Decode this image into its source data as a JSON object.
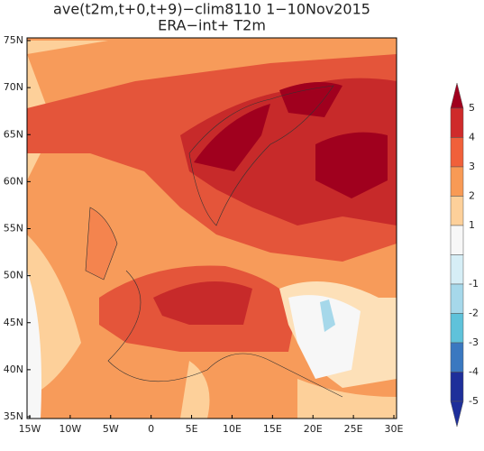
{
  "header": {
    "title": "ave(t2m,t+0,t+9)−clim8110  1−10Nov2015",
    "subtitle": "ERA−int+ T2m"
  },
  "map": {
    "lat_labels": [
      "75N",
      "70N",
      "65N",
      "60N",
      "55N",
      "50N",
      "45N",
      "40N",
      "35N"
    ],
    "lon_labels": [
      "15W",
      "10W",
      "5W",
      "0",
      "5E",
      "10E",
      "15E",
      "20E",
      "25E",
      "30E"
    ]
  },
  "colorbar": {
    "ticks": [
      5,
      4,
      3,
      2,
      1,
      -1,
      -2,
      -3,
      -4,
      -5
    ]
  }
}
